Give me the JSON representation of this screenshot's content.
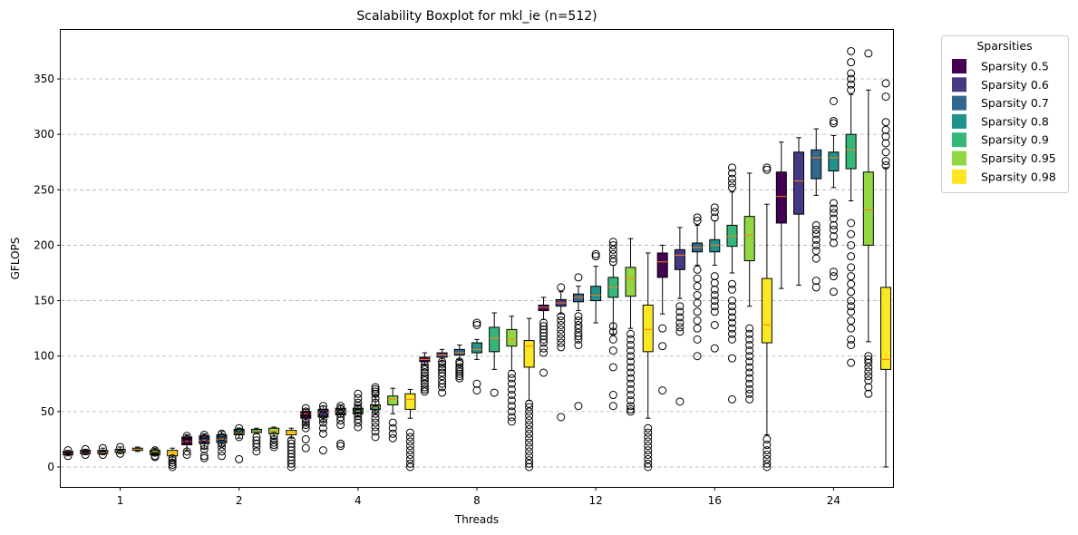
{
  "chart_data": {
    "type": "boxplot",
    "title": "Scalability Boxplot for mkl_ie (n=512)",
    "xlabel": "Threads",
    "ylabel": "GFLOPS",
    "ylim": [
      -18,
      395
    ],
    "yticks": [
      0,
      50,
      100,
      150,
      200,
      250,
      300,
      350
    ],
    "grid": "horizontal-dashed",
    "legend": {
      "title": "Sparsities",
      "placement": "outside-top-right"
    },
    "categories": [
      "1",
      "2",
      "4",
      "8",
      "12",
      "16",
      "24"
    ],
    "median_color": "#ff7f0e",
    "series": [
      {
        "name": "Sparsity 0.5",
        "color": "#440154",
        "boxes": [
          {
            "whislo": 10,
            "q1": 11,
            "med": 12,
            "q3": 14,
            "whishi": 15,
            "fliers": [
              10,
              15
            ]
          },
          {
            "whislo": 15,
            "q1": 20,
            "med": 23,
            "q3": 27,
            "whishi": 29,
            "fliers": [
              11,
              14,
              25,
              28
            ]
          },
          {
            "whislo": 39,
            "q1": 44,
            "med": 48,
            "q3": 50,
            "whishi": 52,
            "fliers": [
              17,
              25,
              35,
              38,
              40,
              43,
              47,
              50,
              53
            ]
          },
          {
            "whislo": 92,
            "q1": 95,
            "med": 97,
            "q3": 99,
            "whishi": 103,
            "fliers": [
              68,
              70,
              72,
              75,
              78,
              80,
              82,
              85,
              88,
              90,
              92
            ]
          },
          {
            "whislo": 133,
            "q1": 141,
            "med": 144,
            "q3": 146,
            "whishi": 153,
            "fliers": [
              85,
              103,
              107,
              112,
              115,
              118,
              121,
              124,
              127,
              130
            ]
          },
          {
            "whislo": 138,
            "q1": 171,
            "med": 185,
            "q3": 193,
            "whishi": 200,
            "fliers": [
              69,
              109,
              125
            ]
          },
          {
            "whislo": 161,
            "q1": 220,
            "med": 244,
            "q3": 266,
            "whishi": 293,
            "fliers": []
          }
        ]
      },
      {
        "name": "Sparsity 0.6",
        "color": "#443983",
        "boxes": [
          {
            "whislo": 11,
            "q1": 12,
            "med": 13,
            "q3": 15,
            "whishi": 16,
            "fliers": [
              11,
              16
            ]
          },
          {
            "whislo": 17,
            "q1": 21,
            "med": 24,
            "q3": 28,
            "whishi": 30,
            "fliers": [
              8,
              10,
              16,
              19,
              26,
              29
            ]
          },
          {
            "whislo": 41,
            "q1": 45,
            "med": 49,
            "q3": 52,
            "whishi": 55,
            "fliers": [
              15,
              30,
              35,
              40,
              43,
              47,
              52,
              55
            ]
          },
          {
            "whislo": 95,
            "q1": 99,
            "med": 101,
            "q3": 103,
            "whishi": 106,
            "fliers": [
              67,
              72,
              75,
              78,
              82,
              85,
              88,
              90,
              93,
              95
            ]
          },
          {
            "whislo": 138,
            "q1": 145,
            "med": 148,
            "q3": 151,
            "whishi": 158,
            "fliers": [
              45,
              108,
              112,
              116,
              120,
              124,
              128,
              132,
              136,
              162
            ]
          },
          {
            "whislo": 152,
            "q1": 178,
            "med": 191,
            "q3": 196,
            "whishi": 216,
            "fliers": [
              59,
              122,
              126,
              130,
              135,
              140,
              145
            ]
          },
          {
            "whislo": 164,
            "q1": 228,
            "med": 258,
            "q3": 284,
            "whishi": 297,
            "fliers": []
          }
        ]
      },
      {
        "name": "Sparsity 0.7",
        "color": "#31688e",
        "boxes": [
          {
            "whislo": 11,
            "q1": 12,
            "med": 13,
            "q3": 15,
            "whishi": 17,
            "fliers": [
              11,
              17
            ]
          },
          {
            "whislo": 19,
            "q1": 22,
            "med": 25,
            "q3": 29,
            "whishi": 32,
            "fliers": [
              10,
              14,
              18,
              21,
              27,
              30
            ]
          },
          {
            "whislo": 45,
            "q1": 47,
            "med": 50,
            "q3": 53,
            "whishi": 56,
            "fliers": [
              19,
              21,
              38,
              42,
              45,
              48,
              52,
              55
            ]
          },
          {
            "whislo": 97,
            "q1": 101,
            "med": 103,
            "q3": 106,
            "whishi": 110,
            "fliers": [
              80,
              82,
              84,
              86,
              88,
              90,
              93,
              95
            ]
          },
          {
            "whislo": 141,
            "q1": 149,
            "med": 153,
            "q3": 156,
            "whishi": 163,
            "fliers": [
              55,
              110,
              115,
              118,
              121,
              125,
              128,
              132,
              136,
              171
            ]
          },
          {
            "whislo": 182,
            "q1": 194,
            "med": 198,
            "q3": 202,
            "whishi": 218,
            "fliers": [
              100,
              115,
              125,
              132,
              140,
              148,
              155,
              163,
              170,
              178,
              222,
              225
            ]
          },
          {
            "whislo": 245,
            "q1": 260,
            "med": 279,
            "q3": 286,
            "whishi": 305,
            "fliers": [
              162,
              168,
              188,
              195,
              200,
              205,
              210,
              214,
              218
            ]
          }
        ]
      },
      {
        "name": "Sparsity 0.8",
        "color": "#21918c",
        "boxes": [
          {
            "whislo": 12,
            "q1": 13,
            "med": 14,
            "q3": 16,
            "whishi": 18,
            "fliers": [
              12,
              18
            ]
          },
          {
            "whislo": 26,
            "q1": 29,
            "med": 31,
            "q3": 34,
            "whishi": 35,
            "fliers": [
              7,
              27,
              32,
              35
            ]
          },
          {
            "whislo": 45,
            "q1": 48,
            "med": 50,
            "q3": 53,
            "whishi": 56,
            "fliers": [
              36,
              40,
              43,
              46,
              49,
              52,
              55,
              58,
              62,
              66
            ]
          },
          {
            "whislo": 97,
            "q1": 103,
            "med": 106,
            "q3": 112,
            "whishi": 115,
            "fliers": [
              69,
              75,
              128,
              130
            ]
          },
          {
            "whislo": 130,
            "q1": 150,
            "med": 155,
            "q3": 163,
            "whishi": 181,
            "fliers": [
              190,
              192
            ]
          },
          {
            "whislo": 182,
            "q1": 194,
            "med": 200,
            "q3": 205,
            "whishi": 222,
            "fliers": [
              107,
              128,
              140,
              145,
              150,
              155,
              160,
              166,
              172,
              225,
              230,
              234
            ]
          },
          {
            "whislo": 252,
            "q1": 267,
            "med": 279,
            "q3": 284,
            "whishi": 299,
            "fliers": [
              158,
              172,
              176,
              202,
              208,
              214,
              218,
              224,
              229,
              233,
              238,
              310,
              312,
              330
            ]
          }
        ]
      },
      {
        "name": "Sparsity 0.9",
        "color": "#35b779",
        "boxes": [
          {
            "whislo": 14,
            "q1": 15,
            "med": 16,
            "q3": 17,
            "whishi": 18,
            "fliers": []
          },
          {
            "whislo": 30,
            "q1": 31,
            "med": 32,
            "q3": 34,
            "whishi": 35,
            "fliers": [
              14,
              18,
              21,
              24,
              27
            ]
          },
          {
            "whislo": 48,
            "q1": 52,
            "med": 54,
            "q3": 56,
            "whishi": 64,
            "fliers": [
              27,
              32,
              36,
              40,
              44,
              48,
              52,
              58,
              62,
              66,
              68,
              70,
              72
            ]
          },
          {
            "whislo": 88,
            "q1": 104,
            "med": 116,
            "q3": 126,
            "whishi": 139,
            "fliers": [
              67
            ]
          },
          {
            "whislo": 120,
            "q1": 153,
            "med": 162,
            "q3": 171,
            "whishi": 182,
            "fliers": [
              55,
              65,
              90,
              105,
              115,
              122,
              127,
              185,
              188,
              192,
              196,
              200,
              203
            ]
          },
          {
            "whislo": 175,
            "q1": 199,
            "med": 208,
            "q3": 218,
            "whishi": 248,
            "fliers": [
              61,
              98,
              115,
              120,
              125,
              130,
              135,
              140,
              145,
              150,
              160,
              165,
              252,
              256,
              260,
              265,
              270
            ]
          },
          {
            "whislo": 240,
            "q1": 269,
            "med": 286,
            "q3": 300,
            "whishi": 336,
            "fliers": [
              94,
              110,
              115,
              125,
              132,
              140,
              145,
              150,
              158,
              165,
              172,
              180,
              190,
              200,
              210,
              220,
              340,
              345,
              350,
              355,
              365,
              375
            ]
          }
        ]
      },
      {
        "name": "Sparsity 0.95",
        "color": "#90d743",
        "boxes": [
          {
            "whislo": 10,
            "q1": 11,
            "med": 12,
            "q3": 15,
            "whishi": 17,
            "fliers": [
              9,
              10,
              13,
              15
            ]
          },
          {
            "whislo": 26,
            "q1": 30,
            "med": 32,
            "q3": 35,
            "whishi": 36,
            "fliers": [
              18,
              20,
              22,
              25,
              28
            ]
          },
          {
            "whislo": 48,
            "q1": 56,
            "med": 61,
            "q3": 64,
            "whishi": 71,
            "fliers": [
              26,
              30,
              35,
              40
            ]
          },
          {
            "whislo": 87,
            "q1": 109,
            "med": 115,
            "q3": 124,
            "whishi": 136,
            "fliers": [
              41,
              45,
              50,
              55,
              60,
              65,
              70,
              75,
              80,
              84
            ]
          },
          {
            "whislo": 125,
            "q1": 154,
            "med": 170,
            "q3": 180,
            "whishi": 206,
            "fliers": [
              50,
              52,
              55,
              60,
              65,
              70,
              75,
              80,
              85,
              90,
              95,
              100,
              105,
              110,
              115,
              120
            ]
          },
          {
            "whislo": 145,
            "q1": 186,
            "med": 209,
            "q3": 226,
            "whishi": 265,
            "fliers": [
              61,
              66,
              70,
              75,
              80,
              85,
              90,
              95,
              100,
              105,
              110,
              115,
              120,
              125
            ]
          },
          {
            "whislo": 113,
            "q1": 200,
            "med": 232,
            "q3": 266,
            "whishi": 340,
            "fliers": [
              66,
              72,
              78,
              82,
              86,
              90,
              94,
              97,
              100,
              373
            ]
          }
        ]
      },
      {
        "name": "Sparsity 0.98",
        "color": "#fde725",
        "boxes": [
          {
            "whislo": 6,
            "q1": 10,
            "med": 13,
            "q3": 15,
            "whishi": 17,
            "fliers": [
              0,
              2,
              4,
              6,
              8
            ]
          },
          {
            "whislo": 26,
            "q1": 29,
            "med": 31,
            "q3": 33,
            "whishi": 35,
            "fliers": [
              0,
              3,
              6,
              9,
              12,
              15,
              18,
              21,
              24
            ]
          },
          {
            "whislo": 44,
            "q1": 52,
            "med": 61,
            "q3": 66,
            "whishi": 70,
            "fliers": [
              0,
              3,
              7,
              11,
              15,
              19,
              23,
              27,
              31
            ]
          },
          {
            "whislo": 60,
            "q1": 90,
            "med": 109,
            "q3": 114,
            "whishi": 134,
            "fliers": [
              0,
              3,
              6,
              10,
              14,
              18,
              22,
              26,
              30,
              34,
              38,
              42,
              46,
              50,
              54,
              57
            ]
          },
          {
            "whislo": 44,
            "q1": 104,
            "med": 124,
            "q3": 146,
            "whishi": 193,
            "fliers": [
              0,
              3,
              7,
              11,
              15,
              19,
              23,
              27,
              31,
              35
            ]
          },
          {
            "whislo": 29,
            "q1": 112,
            "med": 128,
            "q3": 170,
            "whishi": 237,
            "fliers": [
              0,
              3,
              7,
              11,
              15,
              20,
              25,
              268,
              270
            ]
          },
          {
            "whislo": 0,
            "q1": 88,
            "med": 97,
            "q3": 162,
            "whishi": 270,
            "fliers": [
              272,
              276,
              284,
              292,
              298,
              304,
              311,
              334,
              346
            ]
          }
        ]
      }
    ]
  }
}
